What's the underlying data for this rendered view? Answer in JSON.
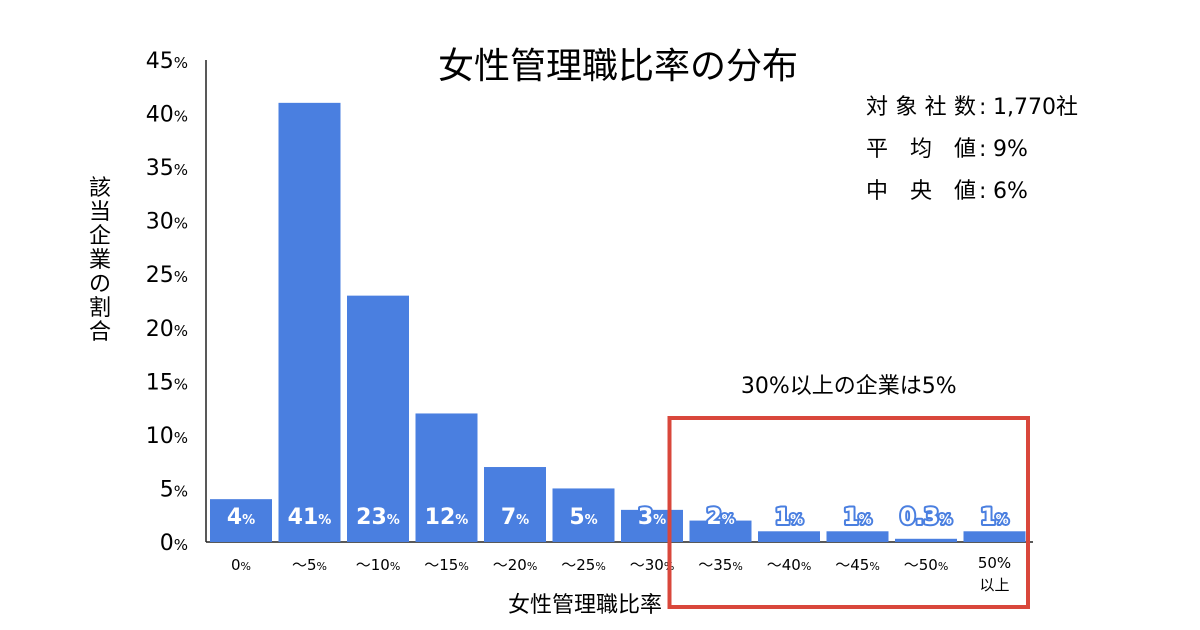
{
  "chart_data": {
    "type": "bar",
    "title": "女性管理職比率の分布",
    "xlabel": "女性管理職比率",
    "ylabel": "該当企業の割合",
    "ylim": [
      0,
      45
    ],
    "yticks": [
      0,
      5,
      10,
      15,
      20,
      25,
      30,
      35,
      40,
      45
    ],
    "ytick_unit": "%",
    "grid": false,
    "categories": [
      "0%",
      "〜5%",
      "〜10%",
      "〜15%",
      "〜20%",
      "〜25%",
      "〜30%",
      "〜35%",
      "〜40%",
      "〜45%",
      "〜50%",
      "50%以上"
    ],
    "values": [
      4,
      41,
      23,
      12,
      7,
      5,
      3,
      2,
      1,
      1,
      0.3,
      1
    ],
    "data_labels": [
      "4",
      "41",
      "23",
      "12",
      "7",
      "5",
      "3",
      "2",
      "1",
      "1",
      "0.3",
      "1"
    ],
    "bar_color": "#4a7fe0",
    "stats": [
      {
        "label": "対象社数",
        "value": "1,770社"
      },
      {
        "label": "平均値",
        "value": "9%"
      },
      {
        "label": "中央値",
        "value": "6%"
      }
    ],
    "callout": {
      "text": "30%以上の企業は5%",
      "from_category": "〜35%",
      "to_category": "50%以上",
      "color": "#d9473b"
    }
  }
}
